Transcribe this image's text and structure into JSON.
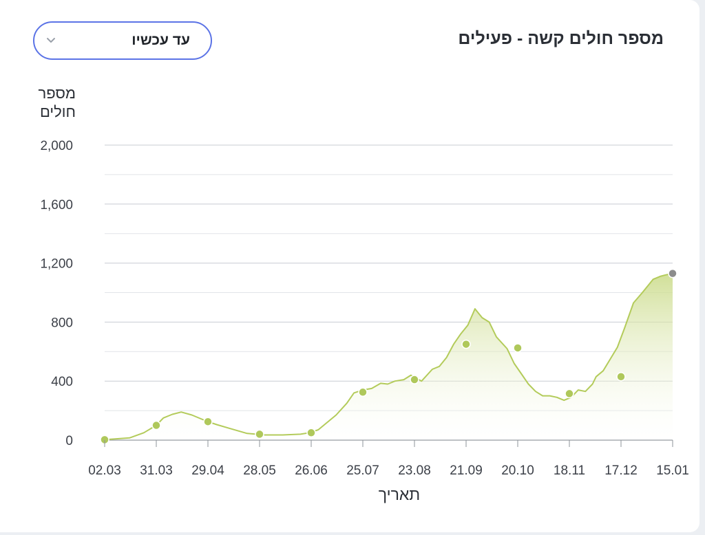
{
  "header": {
    "title": "מספר חולים קשה - פעילים",
    "range_dropdown": {
      "selected": "עד עכשיו",
      "icon": "chevron-down-icon"
    }
  },
  "colors": {
    "line": "#b3cb5a",
    "marker": "#afc85b",
    "last_marker": "#8c8c8c",
    "area_top": "#c9da86",
    "dropdown_border": "#5b73e6"
  },
  "chart_data": {
    "type": "area",
    "title": "מספר חולים קשה - פעילים",
    "ylabel": "מספר חולים",
    "xlabel": "תאריך",
    "ylim": [
      0,
      2000
    ],
    "yticks": [
      0,
      400,
      800,
      1200,
      1600,
      2000
    ],
    "ytick_labels": [
      "0",
      "400",
      "800",
      "1,200",
      "1,600",
      "2,000"
    ],
    "grid": true,
    "x_tick_labels": [
      "02.03",
      "31.03",
      "29.04",
      "28.05",
      "26.06",
      "25.07",
      "23.08",
      "21.09",
      "20.10",
      "18.11",
      "17.12",
      "15.01"
    ],
    "x_range_days": [
      0,
      319
    ],
    "series": [
      {
        "x_days": [
          0,
          14,
          22,
          29,
          33,
          38,
          43,
          49,
          55,
          58,
          63,
          70,
          80,
          90,
          100,
          110,
          115,
          120,
          130,
          136,
          140,
          145,
          150,
          155,
          159,
          163,
          168,
          172,
          178,
          184,
          188,
          192,
          196,
          200,
          204,
          208,
          212,
          216,
          220,
          226,
          230,
          234,
          238,
          242,
          246,
          250,
          254,
          258,
          262,
          266,
          270,
          274,
          276,
          280,
          284,
          288,
          292,
          297,
          302,
          308,
          312,
          315,
          319
        ],
        "values": [
          3,
          15,
          50,
          100,
          150,
          175,
          190,
          170,
          140,
          125,
          105,
          80,
          45,
          35,
          35,
          40,
          50,
          70,
          170,
          250,
          320,
          340,
          350,
          385,
          380,
          400,
          410,
          440,
          400,
          480,
          500,
          560,
          650,
          720,
          780,
          890,
          830,
          800,
          700,
          620,
          520,
          450,
          380,
          330,
          300,
          300,
          290,
          270,
          290,
          340,
          330,
          380,
          430,
          470,
          550,
          630,
          760,
          930,
          1000,
          1090,
          1110,
          1120,
          1130
        ]
      }
    ],
    "markers_days": [
      0,
      29,
      58,
      87,
      116,
      145,
      174,
      203,
      232,
      261,
      290,
      319
    ],
    "marker_values": [
      3,
      100,
      125,
      40,
      50,
      325,
      410,
      650,
      625,
      315,
      430,
      1130
    ]
  }
}
